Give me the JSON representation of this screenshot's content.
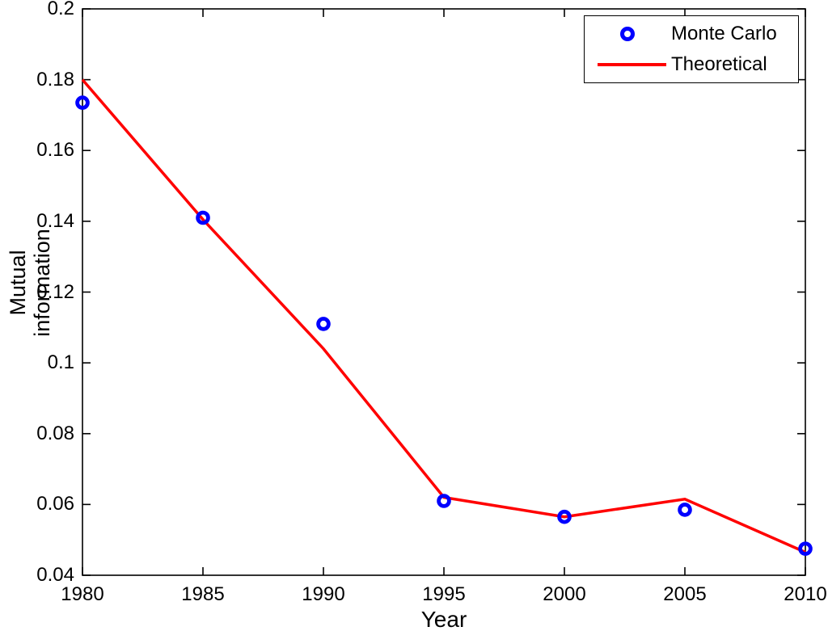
{
  "colors": {
    "monte_carlo_blue": "#0000ff",
    "theoretical_red": "#ff0000",
    "axis": "#000000",
    "background": "#ffffff",
    "text": "#000000"
  },
  "chart_data": {
    "type": "line",
    "title": "",
    "xlabel": "Year",
    "ylabel": "Mutual information",
    "x": [
      1980,
      1985,
      1990,
      1995,
      2000,
      2005,
      2010
    ],
    "x_tick_labels": [
      "1980",
      "1985",
      "1990",
      "1995",
      "2000",
      "2005",
      "2010"
    ],
    "y_ticks": [
      0.04,
      0.06,
      0.08,
      0.1,
      0.12,
      0.14,
      0.16,
      0.18,
      0.2
    ],
    "y_tick_labels": [
      "0.04",
      "0.06",
      "0.08",
      "0.1",
      "0.12",
      "0.14",
      "0.16",
      "0.18",
      "0.2"
    ],
    "xlim": [
      1980,
      2010
    ],
    "ylim": [
      0.04,
      0.2
    ],
    "grid": false,
    "legend_position": "top-right",
    "series": [
      {
        "name": "Monte Carlo",
        "type": "scatter",
        "marker": "circle",
        "color": "#0000ff",
        "values": [
          0.1735,
          0.141,
          0.111,
          0.061,
          0.0565,
          0.0585,
          0.0475
        ]
      },
      {
        "name": "Theoretical",
        "type": "line",
        "color": "#ff0000",
        "values": [
          0.18,
          0.1405,
          0.104,
          0.062,
          0.0565,
          0.0615,
          0.0465
        ]
      }
    ]
  }
}
